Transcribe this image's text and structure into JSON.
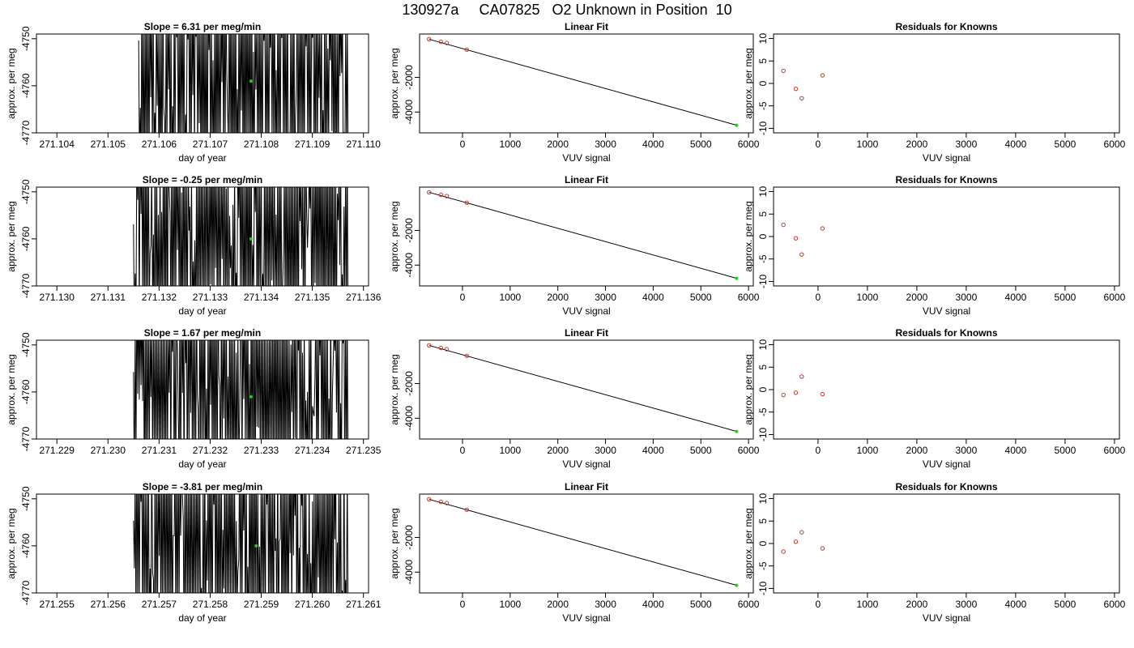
{
  "page": {
    "title": "130927a     CA07825   O2 Unknown in Position  10"
  },
  "colors": {
    "trace": "#000000",
    "known_point": "#c0392b",
    "unknown_point": "#22cc22",
    "axis": "#000000"
  },
  "chart_data": [
    {
      "type": "line",
      "row": 1,
      "panel": "timeseries",
      "title": "Slope =  6.31  per meg/min",
      "xlabel": "day of year",
      "ylabel": "approx. per meg",
      "xlim": [
        271.1036,
        271.1101
      ],
      "ylim": [
        -4770,
        -4749
      ],
      "xticks": [
        271.104,
        271.105,
        271.106,
        271.107,
        271.108,
        271.109,
        271.11
      ],
      "xtick_labels": [
        "271.104",
        "271.105",
        "271.106",
        "271.107",
        "271.108",
        "271.109",
        "271.110"
      ],
      "yticks": [
        -4770,
        -4760,
        -4750
      ],
      "ytick_labels": [
        "-4770",
        "-4760",
        "-4750"
      ],
      "trace_x_range": [
        271.1056,
        271.1097
      ],
      "unknown_marker": {
        "x": 271.1078,
        "y": -4759
      }
    },
    {
      "type": "scatter",
      "row": 1,
      "panel": "linear-fit",
      "title": "Linear Fit",
      "xlabel": "VUV signal",
      "ylabel": "approx. per meg",
      "xlim": [
        -900,
        6100
      ],
      "ylim": [
        -5200,
        500
      ],
      "xticks": [
        0,
        1000,
        2000,
        3000,
        4000,
        5000,
        6000
      ],
      "xtick_labels": [
        "0",
        "1000",
        "2000",
        "3000",
        "4000",
        "5000",
        "6000"
      ],
      "yticks": [
        -4000,
        -2000
      ],
      "ytick_labels": [
        "-4000",
        "-2000"
      ],
      "knowns": [
        {
          "x": -700,
          "y": 200
        },
        {
          "x": -450,
          "y": 50
        },
        {
          "x": -330,
          "y": -20
        },
        {
          "x": 90,
          "y": -400
        }
      ],
      "unknown": {
        "x": 5750,
        "y": -4760
      },
      "fit_line": [
        {
          "x": -700,
          "y": 200
        },
        {
          "x": 5750,
          "y": -4760
        }
      ]
    },
    {
      "type": "scatter",
      "row": 1,
      "panel": "residuals",
      "title": "Residuals for Knowns",
      "xlabel": "VUV signal",
      "ylabel": "approx. per meg",
      "xlim": [
        -900,
        6100
      ],
      "ylim": [
        -11,
        11
      ],
      "xticks": [
        0,
        1000,
        2000,
        3000,
        4000,
        5000,
        6000
      ],
      "xtick_labels": [
        "0",
        "1000",
        "2000",
        "3000",
        "4000",
        "5000",
        "6000"
      ],
      "yticks": [
        -10,
        -5,
        0,
        5,
        10
      ],
      "ytick_labels": [
        "-10",
        "-5",
        "0",
        "5",
        "10"
      ],
      "residuals": [
        {
          "x": -700,
          "y": 2.8
        },
        {
          "x": -450,
          "y": -1.2
        },
        {
          "x": -330,
          "y": -3.3
        },
        {
          "x": 90,
          "y": 1.8
        }
      ]
    },
    {
      "type": "line",
      "row": 2,
      "panel": "timeseries",
      "title": "Slope =  -0.25  per meg/min",
      "xlabel": "day of year",
      "ylabel": "approx. per meg",
      "xlim": [
        271.1296,
        271.1361
      ],
      "ylim": [
        -4770,
        -4749
      ],
      "xticks": [
        271.13,
        271.131,
        271.132,
        271.133,
        271.134,
        271.135,
        271.136
      ],
      "xtick_labels": [
        "271.130",
        "271.131",
        "271.132",
        "271.133",
        "271.134",
        "271.135",
        "271.136"
      ],
      "yticks": [
        -4770,
        -4760,
        -4750
      ],
      "ytick_labels": [
        "-4770",
        "-4760",
        "-4750"
      ],
      "trace_x_range": [
        271.1315,
        271.1357
      ],
      "unknown_marker": {
        "x": 271.1338,
        "y": -4760
      }
    },
    {
      "type": "scatter",
      "row": 2,
      "panel": "linear-fit",
      "title": "Linear Fit",
      "xlabel": "VUV signal",
      "ylabel": "approx. per meg",
      "xlim": [
        -900,
        6100
      ],
      "ylim": [
        -5200,
        500
      ],
      "xticks": [
        0,
        1000,
        2000,
        3000,
        4000,
        5000,
        6000
      ],
      "xtick_labels": [
        "0",
        "1000",
        "2000",
        "3000",
        "4000",
        "5000",
        "6000"
      ],
      "yticks": [
        -4000,
        -2000
      ],
      "ytick_labels": [
        "-4000",
        "-2000"
      ],
      "knowns": [
        {
          "x": -700,
          "y": 200
        },
        {
          "x": -450,
          "y": 50
        },
        {
          "x": -330,
          "y": -20
        },
        {
          "x": 90,
          "y": -400
        }
      ],
      "unknown": {
        "x": 5750,
        "y": -4760
      },
      "fit_line": [
        {
          "x": -700,
          "y": 200
        },
        {
          "x": 5750,
          "y": -4760
        }
      ]
    },
    {
      "type": "scatter",
      "row": 2,
      "panel": "residuals",
      "title": "Residuals for Knowns",
      "xlabel": "VUV signal",
      "ylabel": "approx. per meg",
      "xlim": [
        -900,
        6100
      ],
      "ylim": [
        -11,
        11
      ],
      "xticks": [
        0,
        1000,
        2000,
        3000,
        4000,
        5000,
        6000
      ],
      "xtick_labels": [
        "0",
        "1000",
        "2000",
        "3000",
        "4000",
        "5000",
        "6000"
      ],
      "yticks": [
        -10,
        -5,
        0,
        5,
        10
      ],
      "ytick_labels": [
        "-10",
        "-5",
        "0",
        "5",
        "10"
      ],
      "residuals": [
        {
          "x": -700,
          "y": 2.6
        },
        {
          "x": -450,
          "y": -0.4
        },
        {
          "x": -330,
          "y": -4.0
        },
        {
          "x": 90,
          "y": 1.8
        }
      ]
    },
    {
      "type": "line",
      "row": 3,
      "panel": "timeseries",
      "title": "Slope =  1.67  per meg/min",
      "xlabel": "day of year",
      "ylabel": "approx. per meg",
      "xlim": [
        271.2286,
        271.2351
      ],
      "ylim": [
        -4770,
        -4749
      ],
      "xticks": [
        271.229,
        271.23,
        271.231,
        271.232,
        271.233,
        271.234,
        271.235
      ],
      "xtick_labels": [
        "271.229",
        "271.230",
        "271.231",
        "271.232",
        "271.233",
        "271.234",
        "271.235"
      ],
      "yticks": [
        -4770,
        -4760,
        -4750
      ],
      "ytick_labels": [
        "-4770",
        "-4760",
        "-4750"
      ],
      "trace_x_range": [
        271.2305,
        271.2347
      ],
      "unknown_marker": {
        "x": 271.2328,
        "y": -4761
      }
    },
    {
      "type": "scatter",
      "row": 3,
      "panel": "linear-fit",
      "title": "Linear Fit",
      "xlabel": "VUV signal",
      "ylabel": "approx. per meg",
      "xlim": [
        -900,
        6100
      ],
      "ylim": [
        -5200,
        500
      ],
      "xticks": [
        0,
        1000,
        2000,
        3000,
        4000,
        5000,
        6000
      ],
      "xtick_labels": [
        "0",
        "1000",
        "2000",
        "3000",
        "4000",
        "5000",
        "6000"
      ],
      "yticks": [
        -4000,
        -2000
      ],
      "ytick_labels": [
        "-4000",
        "-2000"
      ],
      "knowns": [
        {
          "x": -700,
          "y": 200
        },
        {
          "x": -450,
          "y": 50
        },
        {
          "x": -330,
          "y": -20
        },
        {
          "x": 90,
          "y": -400
        }
      ],
      "unknown": {
        "x": 5750,
        "y": -4760
      },
      "fit_line": [
        {
          "x": -700,
          "y": 200
        },
        {
          "x": 5750,
          "y": -4760
        }
      ]
    },
    {
      "type": "scatter",
      "row": 3,
      "panel": "residuals",
      "title": "Residuals for Knowns",
      "xlabel": "VUV signal",
      "ylabel": "approx. per meg",
      "xlim": [
        -900,
        6100
      ],
      "ylim": [
        -11,
        11
      ],
      "xticks": [
        0,
        1000,
        2000,
        3000,
        4000,
        5000,
        6000
      ],
      "xtick_labels": [
        "0",
        "1000",
        "2000",
        "3000",
        "4000",
        "5000",
        "6000"
      ],
      "yticks": [
        -10,
        -5,
        0,
        5,
        10
      ],
      "ytick_labels": [
        "-10",
        "-5",
        "0",
        "5",
        "10"
      ],
      "residuals": [
        {
          "x": -700,
          "y": -1.2
        },
        {
          "x": -450,
          "y": -0.7
        },
        {
          "x": -330,
          "y": 2.9
        },
        {
          "x": 90,
          "y": -1.0
        }
      ]
    },
    {
      "type": "line",
      "row": 4,
      "panel": "timeseries",
      "title": "Slope =  -3.81  per meg/min",
      "xlabel": "day of year",
      "ylabel": "approx. per meg",
      "xlim": [
        271.2546,
        271.2611
      ],
      "ylim": [
        -4770,
        -4749
      ],
      "xticks": [
        271.255,
        271.256,
        271.257,
        271.258,
        271.259,
        271.26,
        271.261
      ],
      "xtick_labels": [
        "271.255",
        "271.256",
        "271.257",
        "271.258",
        "271.259",
        "271.260",
        "271.261"
      ],
      "yticks": [
        -4770,
        -4760,
        -4750
      ],
      "ytick_labels": [
        "-4770",
        "-4760",
        "-4750"
      ],
      "trace_x_range": [
        271.2565,
        271.2607
      ],
      "unknown_marker": {
        "x": 271.2589,
        "y": -4760
      }
    },
    {
      "type": "scatter",
      "row": 4,
      "panel": "linear-fit",
      "title": "Linear Fit",
      "xlabel": "VUV signal",
      "ylabel": "approx. per meg",
      "xlim": [
        -900,
        6100
      ],
      "ylim": [
        -5200,
        500
      ],
      "xticks": [
        0,
        1000,
        2000,
        3000,
        4000,
        5000,
        6000
      ],
      "xtick_labels": [
        "0",
        "1000",
        "2000",
        "3000",
        "4000",
        "5000",
        "6000"
      ],
      "yticks": [
        -4000,
        -2000
      ],
      "ytick_labels": [
        "-4000",
        "-2000"
      ],
      "knowns": [
        {
          "x": -700,
          "y": 200
        },
        {
          "x": -450,
          "y": 50
        },
        {
          "x": -330,
          "y": -20
        },
        {
          "x": 90,
          "y": -400
        }
      ],
      "unknown": {
        "x": 5750,
        "y": -4760
      },
      "fit_line": [
        {
          "x": -700,
          "y": 200
        },
        {
          "x": 5750,
          "y": -4760
        }
      ]
    },
    {
      "type": "scatter",
      "row": 4,
      "panel": "residuals",
      "title": "Residuals for Knowns",
      "xlabel": "VUV signal",
      "ylabel": "approx. per meg",
      "xlim": [
        -900,
        6100
      ],
      "ylim": [
        -11,
        11
      ],
      "xticks": [
        0,
        1000,
        2000,
        3000,
        4000,
        5000,
        6000
      ],
      "xtick_labels": [
        "0",
        "1000",
        "2000",
        "3000",
        "4000",
        "5000",
        "6000"
      ],
      "yticks": [
        -10,
        -5,
        0,
        5,
        10
      ],
      "ytick_labels": [
        "-10",
        "-5",
        "0",
        "5",
        "10"
      ],
      "residuals": [
        {
          "x": -700,
          "y": -1.8
        },
        {
          "x": -450,
          "y": 0.4
        },
        {
          "x": -330,
          "y": 2.5
        },
        {
          "x": 90,
          "y": -1.1
        }
      ]
    }
  ]
}
